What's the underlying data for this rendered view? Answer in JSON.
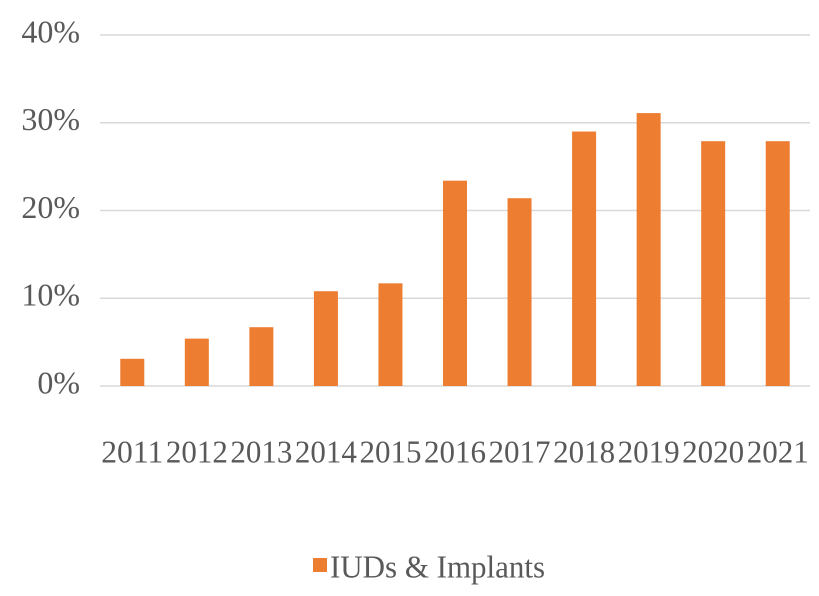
{
  "chart_data": {
    "type": "bar",
    "categories": [
      "2011",
      "2012",
      "2013",
      "2014",
      "2015",
      "2016",
      "2017",
      "2018",
      "2019",
      "2020",
      "2021"
    ],
    "series": [
      {
        "name": "IUDs & Implants",
        "color": "#ed7d31",
        "values": [
          3.1,
          5.4,
          6.7,
          10.8,
          11.7,
          23.4,
          21.4,
          29,
          31.1,
          27.9,
          27.9
        ]
      }
    ],
    "ylim": [
      0,
      40
    ],
    "yticks": [
      {
        "value": 0,
        "label": "0%"
      },
      {
        "value": 10,
        "label": "10%"
      },
      {
        "value": 20,
        "label": "20%"
      },
      {
        "value": 30,
        "label": "30%"
      },
      {
        "value": 40,
        "label": "40%"
      }
    ],
    "grid": true,
    "legend": "bottom"
  }
}
